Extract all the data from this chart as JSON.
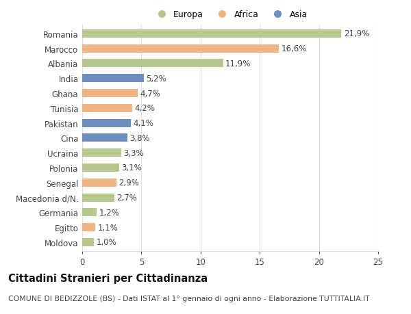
{
  "countries": [
    "Romania",
    "Marocco",
    "Albania",
    "India",
    "Ghana",
    "Tunisia",
    "Pakistan",
    "Cina",
    "Ucraina",
    "Polonia",
    "Senegal",
    "Macedonia d/N.",
    "Germania",
    "Egitto",
    "Moldova"
  ],
  "values": [
    21.9,
    16.6,
    11.9,
    5.2,
    4.7,
    4.2,
    4.1,
    3.8,
    3.3,
    3.1,
    2.9,
    2.7,
    1.2,
    1.1,
    1.0
  ],
  "labels": [
    "21,9%",
    "16,6%",
    "11,9%",
    "5,2%",
    "4,7%",
    "4,2%",
    "4,1%",
    "3,8%",
    "3,3%",
    "3,1%",
    "2,9%",
    "2,7%",
    "1,2%",
    "1,1%",
    "1,0%"
  ],
  "continents": [
    "Europa",
    "Africa",
    "Europa",
    "Asia",
    "Africa",
    "Africa",
    "Asia",
    "Asia",
    "Europa",
    "Europa",
    "Africa",
    "Europa",
    "Europa",
    "Africa",
    "Europa"
  ],
  "colors": {
    "Europa": "#b5c98e",
    "Africa": "#f0b482",
    "Asia": "#6d8ebf"
  },
  "xlim": [
    0,
    25
  ],
  "xticks": [
    0,
    5,
    10,
    15,
    20,
    25
  ],
  "background_color": "#ffffff",
  "grid_color": "#dddddd",
  "title": "Cittadini Stranieri per Cittadinanza",
  "subtitle": "COMUNE DI BEDIZZOLE (BS) - Dati ISTAT al 1° gennaio di ogni anno - Elaborazione TUTTITALIA.IT",
  "bar_height": 0.55,
  "label_fontsize": 8.5,
  "ytick_fontsize": 8.5,
  "xtick_fontsize": 8.5,
  "title_fontsize": 10.5,
  "subtitle_fontsize": 7.8,
  "legend_fontsize": 9
}
